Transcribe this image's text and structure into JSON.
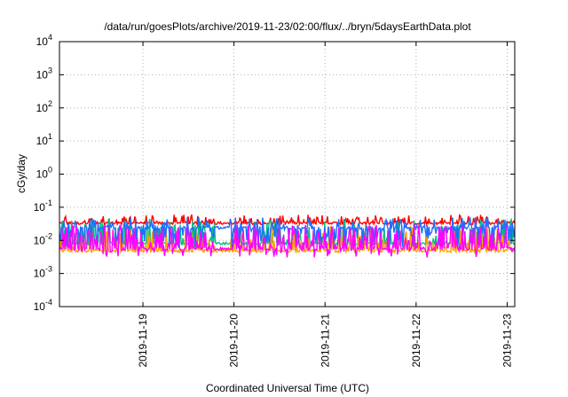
{
  "chart_data": {
    "type": "line",
    "title": "/data/run/goesPlots/archive/2019-11-23/02:00/flux/../bryn/5daysEarthData.plot",
    "xlabel": "Coordinated Universal Time (UTC)",
    "ylabel": "cGy/day",
    "yscale": "log",
    "ylim": [
      0.0001,
      10000
    ],
    "xlim": [
      "2019-11-18T02:00",
      "2019-11-23T02:00"
    ],
    "y_tick_exponents": [
      -4,
      -3,
      -2,
      -1,
      0,
      1,
      2,
      3,
      4
    ],
    "x_ticks": [
      "2019-11-19",
      "2019-11-20",
      "2019-11-21",
      "2019-11-22",
      "2019-11-23"
    ],
    "grid": true,
    "legend": "none",
    "data_gap": [
      "2019-11-19T19:00",
      "2019-11-19T23:00"
    ],
    "series": [
      {
        "color": "#ff0000",
        "base": 0.033,
        "spike_max": 0.06,
        "dip_min": 0.022
      },
      {
        "color": "#00c080",
        "base": 0.008,
        "spike_max": 0.045,
        "dip_min": 0.005
      },
      {
        "color": "#ffa000",
        "base": 0.0048,
        "spike_max": 0.03,
        "dip_min": 0.0035
      },
      {
        "color": "#1e6eff",
        "base": 0.024,
        "spike_max": 0.05,
        "dip_min": 0.006
      },
      {
        "color": "#ff00ff",
        "base": 0.0055,
        "spike_max": 0.03,
        "dip_min": 0.003
      }
    ]
  }
}
